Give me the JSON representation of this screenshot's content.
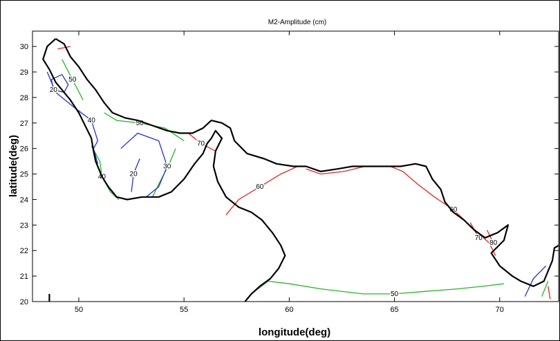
{
  "chart_data": {
    "type": "contour",
    "title": "M2-Amplitude (cm)",
    "xlabel": "longitude(deg)",
    "ylabel": "latitude(deg)",
    "xlim": [
      47.8,
      72.8
    ],
    "ylim": [
      20,
      30.6
    ],
    "xticks": [
      50,
      55,
      60,
      65,
      70
    ],
    "yticks": [
      20,
      21,
      22,
      23,
      24,
      25,
      26,
      27,
      28,
      29,
      30
    ],
    "grid": false,
    "colors": {
      "red": "#e8211d",
      "green": "#22b722",
      "blue": "#1f2fd6",
      "coast": "#000000"
    },
    "coastlines": [
      [
        [
          48.6,
          20.0
        ],
        [
          48.6,
          20.3
        ]
      ],
      [
        [
          48.9,
          30.3
        ],
        [
          48.5,
          30.0
        ],
        [
          48.3,
          29.5
        ],
        [
          48.6,
          29.1
        ],
        [
          48.9,
          28.6
        ],
        [
          49.2,
          28.3
        ],
        [
          49.6,
          27.9
        ],
        [
          50.0,
          27.4
        ],
        [
          50.3,
          26.9
        ],
        [
          50.6,
          26.4
        ],
        [
          50.7,
          25.9
        ],
        [
          50.8,
          25.5
        ],
        [
          51.1,
          24.9
        ],
        [
          51.4,
          24.5
        ],
        [
          51.8,
          24.1
        ],
        [
          52.3,
          24.0
        ],
        [
          53.0,
          24.1
        ],
        [
          53.8,
          24.1
        ],
        [
          54.4,
          24.3
        ],
        [
          55.0,
          24.8
        ],
        [
          55.5,
          25.4
        ],
        [
          55.9,
          25.8
        ],
        [
          56.1,
          26.2
        ],
        [
          56.3,
          26.4
        ],
        [
          56.5,
          26.7
        ],
        [
          56.8,
          26.4
        ],
        [
          56.5,
          25.9
        ],
        [
          56.4,
          25.3
        ],
        [
          56.6,
          24.7
        ],
        [
          57.0,
          24.1
        ],
        [
          57.6,
          23.7
        ],
        [
          58.2,
          23.5
        ],
        [
          58.7,
          23.2
        ],
        [
          59.2,
          22.7
        ],
        [
          59.6,
          22.2
        ],
        [
          59.8,
          21.8
        ],
        [
          59.5,
          21.3
        ],
        [
          59.1,
          20.9
        ],
        [
          58.6,
          20.6
        ],
        [
          58.2,
          20.3
        ],
        [
          57.9,
          20.0
        ]
      ],
      [
        [
          48.9,
          30.3
        ],
        [
          49.3,
          30.1
        ],
        [
          49.6,
          29.6
        ],
        [
          50.0,
          29.2
        ],
        [
          50.4,
          28.7
        ],
        [
          50.8,
          28.3
        ],
        [
          51.2,
          27.8
        ],
        [
          51.6,
          27.4
        ],
        [
          52.2,
          27.2
        ],
        [
          52.8,
          27.1
        ],
        [
          53.5,
          26.9
        ],
        [
          54.2,
          26.7
        ],
        [
          54.8,
          26.6
        ],
        [
          55.4,
          26.6
        ],
        [
          55.9,
          26.8
        ],
        [
          56.3,
          27.1
        ],
        [
          56.8,
          27.0
        ],
        [
          57.2,
          26.8
        ],
        [
          57.4,
          26.3
        ],
        [
          58.0,
          25.8
        ],
        [
          58.8,
          25.6
        ],
        [
          59.4,
          25.4
        ],
        [
          60.2,
          25.3
        ],
        [
          60.8,
          25.3
        ],
        [
          61.5,
          25.1
        ],
        [
          62.3,
          25.2
        ],
        [
          63.0,
          25.3
        ],
        [
          63.8,
          25.3
        ],
        [
          64.5,
          25.3
        ],
        [
          65.3,
          25.3
        ],
        [
          66.0,
          25.4
        ],
        [
          66.5,
          25.3
        ],
        [
          66.8,
          24.8
        ],
        [
          67.2,
          24.4
        ],
        [
          67.4,
          23.9
        ],
        [
          67.8,
          23.5
        ],
        [
          68.3,
          23.2
        ],
        [
          68.8,
          22.8
        ],
        [
          69.3,
          22.5
        ],
        [
          69.9,
          22.7
        ],
        [
          70.4,
          23.0
        ],
        [
          70.2,
          22.4
        ],
        [
          69.6,
          21.9
        ],
        [
          70.0,
          21.4
        ],
        [
          70.6,
          21.0
        ],
        [
          71.0,
          20.8
        ],
        [
          71.6,
          20.6
        ],
        [
          72.1,
          20.8
        ],
        [
          72.5,
          21.6
        ],
        [
          72.6,
          22.1
        ],
        [
          72.8,
          22.2
        ]
      ]
    ],
    "contours": [
      {
        "color": "red",
        "label": "60",
        "points": [
          [
            57.0,
            23.4
          ],
          [
            57.6,
            24.0
          ],
          [
            58.6,
            24.5
          ],
          [
            59.6,
            25.0
          ],
          [
            60.4,
            25.3
          ]
        ]
      },
      {
        "color": "red",
        "label": "60",
        "points": [
          [
            64.8,
            25.3
          ],
          [
            65.4,
            25.1
          ],
          [
            66.1,
            24.6
          ],
          [
            66.9,
            24.1
          ],
          [
            67.8,
            23.6
          ],
          [
            68.7,
            22.9
          ],
          [
            69.5,
            22.3
          ],
          [
            69.8,
            21.8
          ]
        ]
      },
      {
        "color": "red",
        "label": "70",
        "points": [
          [
            55.2,
            26.6
          ],
          [
            55.8,
            26.2
          ],
          [
            56.5,
            25.9
          ]
        ]
      },
      {
        "color": "red",
        "label": "70",
        "points": [
          [
            68.6,
            23.1
          ],
          [
            69.0,
            22.5
          ]
        ]
      },
      {
        "color": "red",
        "label": "80",
        "points": [
          [
            69.4,
            22.8
          ],
          [
            69.7,
            22.3
          ]
        ]
      },
      {
        "color": "red",
        "label": "",
        "points": [
          [
            60.8,
            25.2
          ],
          [
            61.5,
            25.0
          ],
          [
            62.6,
            25.1
          ],
          [
            63.6,
            25.3
          ],
          [
            64.5,
            25.3
          ]
        ]
      },
      {
        "color": "red",
        "label": "",
        "points": [
          [
            49.0,
            29.9
          ],
          [
            49.6,
            30.0
          ]
        ]
      },
      {
        "color": "red",
        "label": "",
        "points": [
          [
            72.3,
            20.6
          ],
          [
            72.4,
            20.1
          ]
        ]
      },
      {
        "color": "green",
        "label": "50",
        "points": [
          [
            58.2,
            20.3
          ],
          [
            59.0,
            20.8
          ],
          [
            60.0,
            20.7
          ],
          [
            61.5,
            20.5
          ],
          [
            63.5,
            20.3
          ],
          [
            65.0,
            20.3
          ],
          [
            66.5,
            20.4
          ],
          [
            68.0,
            20.5
          ],
          [
            69.2,
            20.6
          ],
          [
            70.2,
            20.7
          ]
        ]
      },
      {
        "color": "green",
        "label": "50",
        "points": [
          [
            51.2,
            27.4
          ],
          [
            51.8,
            27.1
          ],
          [
            52.9,
            27.0
          ],
          [
            54.1,
            26.8
          ],
          [
            55.0,
            26.3
          ]
        ]
      },
      {
        "color": "green",
        "label": "50",
        "points": [
          [
            49.2,
            29.5
          ],
          [
            49.7,
            28.7
          ],
          [
            50.2,
            27.9
          ]
        ]
      },
      {
        "color": "green",
        "label": "40",
        "points": [
          [
            50.6,
            26.1
          ],
          [
            51.0,
            25.5
          ],
          [
            51.1,
            24.9
          ],
          [
            51.5,
            24.3
          ],
          [
            51.9,
            24.0
          ]
        ]
      },
      {
        "color": "green",
        "label": "",
        "points": [
          [
            53.5,
            24.1
          ],
          [
            53.8,
            24.6
          ],
          [
            54.3,
            25.4
          ],
          [
            54.6,
            26.0
          ]
        ]
      },
      {
        "color": "green",
        "label": "",
        "points": [
          [
            72.0,
            20.2
          ],
          [
            72.3,
            20.8
          ]
        ]
      },
      {
        "color": "blue",
        "label": "40",
        "points": [
          [
            48.5,
            29.0
          ],
          [
            48.9,
            28.2
          ],
          [
            49.8,
            27.6
          ],
          [
            50.6,
            27.1
          ],
          [
            50.9,
            26.3
          ],
          [
            50.7,
            26.0
          ],
          [
            50.9,
            25.4
          ]
        ]
      },
      {
        "color": "blue",
        "label": "30",
        "points": [
          [
            52.0,
            26.0
          ],
          [
            52.8,
            26.6
          ],
          [
            53.8,
            26.3
          ],
          [
            54.2,
            25.3
          ],
          [
            53.8,
            24.5
          ],
          [
            53.2,
            24.1
          ]
        ]
      },
      {
        "color": "blue",
        "label": "20",
        "points": [
          [
            52.5,
            24.3
          ],
          [
            52.6,
            25.0
          ],
          [
            52.9,
            25.6
          ]
        ]
      },
      {
        "color": "blue",
        "label": "20",
        "points": [
          [
            49.2,
            28.9
          ],
          [
            49.5,
            28.5
          ],
          [
            49.3,
            28.2
          ],
          [
            48.8,
            28.3
          ],
          [
            48.7,
            28.7
          ],
          [
            49.2,
            28.9
          ]
        ]
      },
      {
        "color": "blue",
        "label": "",
        "points": [
          [
            71.2,
            20.2
          ],
          [
            71.6,
            20.9
          ],
          [
            72.2,
            21.4
          ]
        ]
      }
    ]
  }
}
